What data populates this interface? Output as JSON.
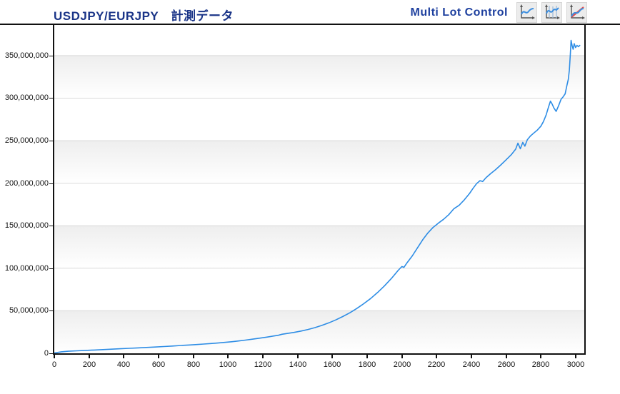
{
  "header": {
    "title": "USDJPY/EURJPY　計測データ",
    "control_label": "Multi Lot Control",
    "buttons": [
      {
        "name": "line-chart-view"
      },
      {
        "name": "line-with-bars-view"
      },
      {
        "name": "line-vs-trend-view"
      }
    ]
  },
  "colors": {
    "title_text": "#1b3588",
    "control_text": "#1d3f9e",
    "series_line": "#2e8de5",
    "trend_red": "#e05050",
    "gridline": "#d9d9d9",
    "band_gray": "#eeeeee",
    "axis": "#111111",
    "button_bg": "#ececec"
  },
  "chart_data": {
    "type": "line",
    "title": "USDJPY/EURJPY　計測データ",
    "xlabel": "",
    "ylabel": "",
    "legend": "none",
    "grid": true,
    "xlim": [
      0,
      3050
    ],
    "ylim": [
      0,
      386000000
    ],
    "x_ticks": [
      0,
      200,
      400,
      600,
      800,
      1000,
      1200,
      1400,
      1600,
      1800,
      2000,
      2200,
      2400,
      2600,
      2800,
      3000
    ],
    "y_tick_values": [
      0,
      50000000,
      100000000,
      150000000,
      200000000,
      250000000,
      300000000,
      350000000
    ],
    "y_tick_labels": [
      "0",
      "50,000,000",
      "100,000,000",
      "150,000,000",
      "200,000,000",
      "250,000,000",
      "300,000,000",
      "350,000,000"
    ],
    "series": [
      {
        "name": "USDJPY/EURJPY",
        "color": "#2e8de5",
        "points": [
          [
            0,
            400000
          ],
          [
            40,
            1800000
          ],
          [
            80,
            2400000
          ],
          [
            130,
            2900000
          ],
          [
            180,
            3400000
          ],
          [
            230,
            3900000
          ],
          [
            280,
            4400000
          ],
          [
            330,
            4900000
          ],
          [
            380,
            5400000
          ],
          [
            430,
            5900000
          ],
          [
            480,
            6400000
          ],
          [
            530,
            6900000
          ],
          [
            580,
            7400000
          ],
          [
            630,
            8000000
          ],
          [
            680,
            8600000
          ],
          [
            730,
            9200000
          ],
          [
            780,
            9800000
          ],
          [
            820,
            10300000
          ],
          [
            860,
            10900000
          ],
          [
            900,
            11500000
          ],
          [
            940,
            12100000
          ],
          [
            980,
            12800000
          ],
          [
            1020,
            13600000
          ],
          [
            1060,
            14500000
          ],
          [
            1100,
            15500000
          ],
          [
            1140,
            16600000
          ],
          [
            1180,
            17800000
          ],
          [
            1220,
            19000000
          ],
          [
            1260,
            20300000
          ],
          [
            1290,
            21200000
          ],
          [
            1310,
            22400000
          ],
          [
            1340,
            23300000
          ],
          [
            1380,
            24600000
          ],
          [
            1420,
            26200000
          ],
          [
            1460,
            28000000
          ],
          [
            1500,
            30200000
          ],
          [
            1540,
            32800000
          ],
          [
            1580,
            35800000
          ],
          [
            1620,
            39300000
          ],
          [
            1660,
            43200000
          ],
          [
            1700,
            47600000
          ],
          [
            1740,
            52600000
          ],
          [
            1780,
            58200000
          ],
          [
            1820,
            64400000
          ],
          [
            1860,
            71400000
          ],
          [
            1900,
            79200000
          ],
          [
            1940,
            88000000
          ],
          [
            1980,
            97800000
          ],
          [
            2000,
            102000000
          ],
          [
            2012,
            101000000
          ],
          [
            2030,
            106500000
          ],
          [
            2060,
            114500000
          ],
          [
            2090,
            124000000
          ],
          [
            2120,
            133500000
          ],
          [
            2150,
            141500000
          ],
          [
            2180,
            148000000
          ],
          [
            2210,
            153000000
          ],
          [
            2240,
            157500000
          ],
          [
            2270,
            163000000
          ],
          [
            2300,
            170000000
          ],
          [
            2330,
            174000000
          ],
          [
            2360,
            180500000
          ],
          [
            2390,
            188000000
          ],
          [
            2410,
            194000000
          ],
          [
            2430,
            199500000
          ],
          [
            2450,
            203000000
          ],
          [
            2465,
            202000000
          ],
          [
            2485,
            206500000
          ],
          [
            2510,
            211000000
          ],
          [
            2540,
            216000000
          ],
          [
            2570,
            221500000
          ],
          [
            2600,
            227500000
          ],
          [
            2630,
            233500000
          ],
          [
            2655,
            240000000
          ],
          [
            2668,
            247000000
          ],
          [
            2682,
            240500000
          ],
          [
            2696,
            248000000
          ],
          [
            2708,
            243500000
          ],
          [
            2722,
            251000000
          ],
          [
            2740,
            255500000
          ],
          [
            2760,
            259000000
          ],
          [
            2780,
            262500000
          ],
          [
            2800,
            267000000
          ],
          [
            2815,
            272500000
          ],
          [
            2830,
            280000000
          ],
          [
            2845,
            290000000
          ],
          [
            2855,
            296500000
          ],
          [
            2865,
            293000000
          ],
          [
            2875,
            288500000
          ],
          [
            2888,
            284500000
          ],
          [
            2902,
            291000000
          ],
          [
            2916,
            298500000
          ],
          [
            2928,
            301500000
          ],
          [
            2940,
            305000000
          ],
          [
            2950,
            315000000
          ],
          [
            2958,
            322000000
          ],
          [
            2964,
            333000000
          ],
          [
            2970,
            352000000
          ],
          [
            2974,
            368000000
          ],
          [
            2980,
            361500000
          ],
          [
            2986,
            357500000
          ],
          [
            2992,
            364000000
          ],
          [
            3000,
            359500000
          ],
          [
            3008,
            362000000
          ],
          [
            3016,
            360500000
          ],
          [
            3024,
            362000000
          ]
        ]
      }
    ]
  }
}
